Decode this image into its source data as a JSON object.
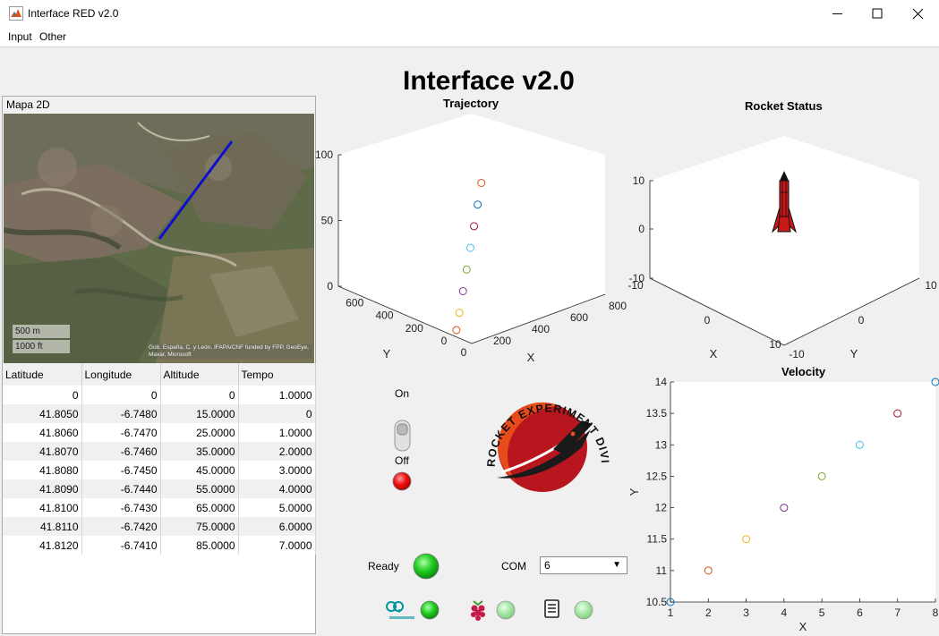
{
  "window": {
    "title": "Interface RED v2.0"
  },
  "menu": {
    "items": [
      "Input",
      "Other"
    ]
  },
  "left_panel": {
    "title": "Mapa 2D",
    "map": {
      "scale_m": "500 m",
      "scale_ft": "1000 ft",
      "credit": "Gob. España, C. y León, IFAPA/CNF funded by FPP, GeoEye, Maxar, Microsoft"
    },
    "table": {
      "headers": [
        "Latitude",
        "Longitude",
        "Altitude",
        "Tempo"
      ],
      "rows": [
        [
          "0",
          "0",
          "0",
          "1.0000"
        ],
        [
          "41.8050",
          "-6.7480",
          "15.0000",
          "0"
        ],
        [
          "41.8060",
          "-6.7470",
          "25.0000",
          "1.0000"
        ],
        [
          "41.8070",
          "-6.7460",
          "35.0000",
          "2.0000"
        ],
        [
          "41.8080",
          "-6.7450",
          "45.0000",
          "3.0000"
        ],
        [
          "41.8090",
          "-6.7440",
          "55.0000",
          "4.0000"
        ],
        [
          "41.8100",
          "-6.7430",
          "65.0000",
          "5.0000"
        ],
        [
          "41.8110",
          "-6.7420",
          "75.0000",
          "6.0000"
        ],
        [
          "41.8120",
          "-6.7410",
          "85.0000",
          "7.0000"
        ]
      ]
    }
  },
  "main_title": "Interface v2.0",
  "switch": {
    "on_label": "On",
    "off_label": "Off",
    "state": "off"
  },
  "logo_text": "ROCKET EXPERIMENT DIVISION",
  "status": {
    "ready_label": "Ready",
    "com_label": "COM",
    "com_value": "6"
  },
  "colors": {
    "c1": "#0072bd",
    "c2": "#d95319",
    "c3": "#edb120",
    "c4": "#7e2f8e",
    "c5": "#77ac30",
    "c6": "#4dbeee",
    "c7": "#a2142f",
    "led_on": "#22cc22",
    "led_dim": "#9de89d",
    "led_off": "#ee1111",
    "path": "#1010cc"
  },
  "chart_data": [
    {
      "type": "scatter",
      "title": "Trajectory",
      "xlabel": "X",
      "ylabel": "Y",
      "zlabel": "",
      "xlim": [
        0,
        800
      ],
      "ylim": [
        0,
        800
      ],
      "zlim": [
        0,
        100
      ],
      "xticks": [
        "0",
        "200",
        "400",
        "600",
        "800"
      ],
      "yticks": [
        "0",
        "200",
        "400",
        "600"
      ],
      "zticks": [
        "0",
        "50",
        "100"
      ],
      "z": [
        7,
        15,
        25,
        35,
        45,
        55,
        65,
        75
      ],
      "point_colors": [
        "c2",
        "c3",
        "c4",
        "c5",
        "c6",
        "c7",
        "c1",
        "c2"
      ]
    },
    {
      "type": "3d-model",
      "title": "Rocket Status",
      "xlabel": "X",
      "ylabel": "Y",
      "xlim": [
        -10,
        10
      ],
      "ylim": [
        -10,
        10
      ],
      "zlim": [
        -10,
        10
      ],
      "xticks": [
        "-10",
        "0",
        "10"
      ],
      "yticks": [
        "-10",
        "0",
        "10"
      ],
      "zticks": [
        "-10",
        "0",
        "10"
      ]
    },
    {
      "type": "scatter",
      "title": "Velocity",
      "xlabel": "X",
      "ylabel": "Y",
      "xlim": [
        1,
        8
      ],
      "ylim": [
        10.5,
        14
      ],
      "xticks": [
        "1",
        "2",
        "3",
        "4",
        "5",
        "6",
        "7",
        "8"
      ],
      "yticks": [
        "10.5",
        "11",
        "11.5",
        "12",
        "12.5",
        "13",
        "13.5",
        "14"
      ],
      "x": [
        1,
        2,
        3,
        4,
        5,
        6,
        7,
        8
      ],
      "y": [
        10.5,
        11,
        11.5,
        12,
        12.5,
        13,
        13.5,
        14
      ],
      "point_colors": [
        "c1",
        "c2",
        "c3",
        "c4",
        "c5",
        "c6",
        "c7",
        "c1"
      ]
    }
  ]
}
